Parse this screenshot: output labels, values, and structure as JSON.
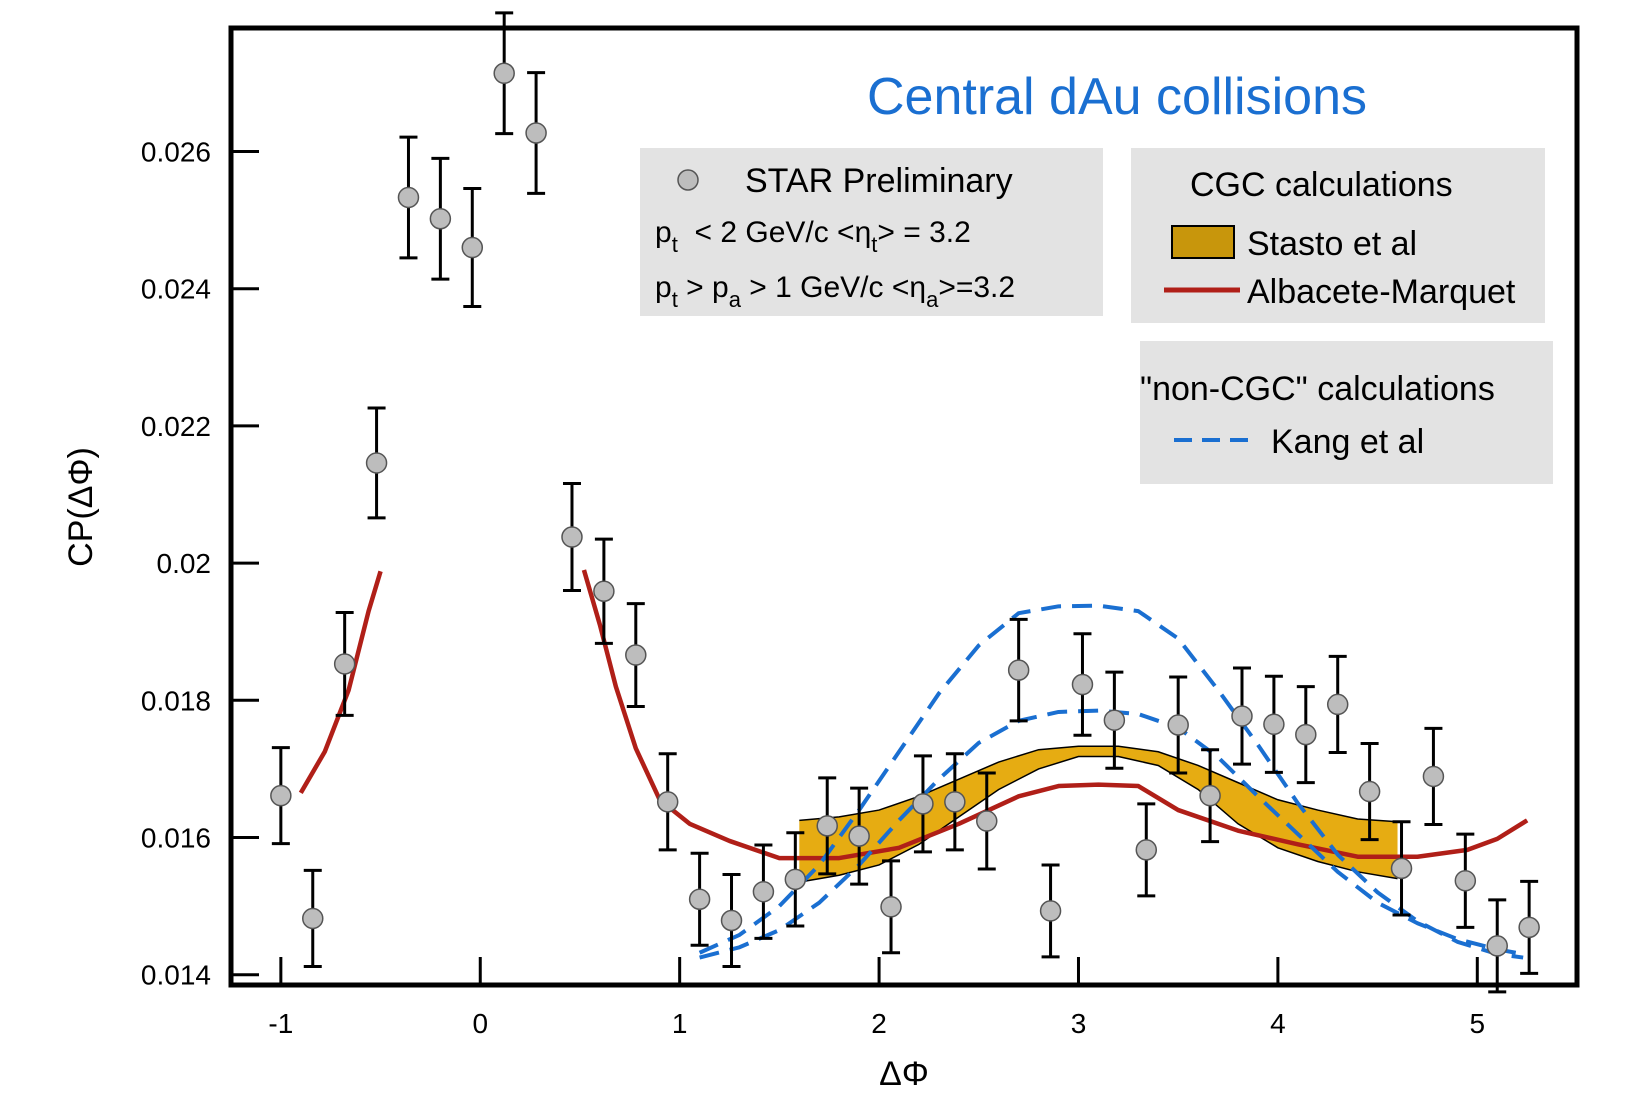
{
  "chart_data": {
    "type": "scatter",
    "title": "Central dAu collisions",
    "xlabel": "ΔΦ",
    "ylabel": "CP(ΔΦ)",
    "xlim": [
      -1.25,
      5.5
    ],
    "ylim": [
      0.01385,
      0.0278
    ],
    "xticks": [
      -1,
      0,
      1,
      2,
      3,
      4,
      5
    ],
    "xtick_labels": [
      "-1",
      "0",
      "1",
      "2",
      "3",
      "4",
      "5"
    ],
    "yticks": [
      0.014,
      0.016,
      0.018,
      0.02,
      0.022,
      0.024,
      0.026
    ],
    "ytick_labels": [
      "0.014",
      "0.016",
      "0.018",
      "0.02",
      "0.022",
      "0.024",
      "0.026"
    ],
    "grid": false,
    "data_legend": {
      "marker_label": "STAR Preliminary",
      "line1": "p_t < 2 GeV/c <η_t> = 3.2",
      "line2": "p_t > p_a > 1 GeV/c <η_a>=3.2"
    },
    "cgc_legend": {
      "title": "CGC calculations",
      "band_label": "Stasto et al",
      "line_label": "Albacete-Marquet"
    },
    "noncgc_legend": {
      "title": "\"non-CGC\" calculations",
      "line_label": "Kang et al"
    },
    "colors": {
      "title": "#1a6fd1",
      "points": "#bdbdbd",
      "albacete": "#b01f18",
      "kang": "#1a6fd1",
      "band": "#e6ac12",
      "legend_bg": "#e3e3e3"
    },
    "series": [
      {
        "name": "STAR Preliminary",
        "type": "scatter",
        "x": [
          -1.0,
          -0.84,
          -0.68,
          -0.52,
          -0.36,
          -0.2,
          -0.04,
          0.12,
          0.28,
          0.46,
          0.62,
          0.78,
          0.94,
          1.1,
          1.26,
          1.42,
          1.58,
          1.74,
          1.9,
          2.06,
          2.22,
          2.38,
          2.54,
          2.7,
          2.86,
          3.02,
          3.18,
          3.34,
          3.5,
          3.66,
          3.82,
          3.98,
          4.14,
          4.3,
          4.46,
          4.62,
          4.78,
          4.94,
          5.1,
          5.26
        ],
        "y": [
          0.01661,
          0.01482,
          0.01853,
          0.02146,
          0.02533,
          0.02502,
          0.0246,
          0.02714,
          0.02627,
          0.02038,
          0.01959,
          0.01866,
          0.01652,
          0.0151,
          0.01479,
          0.01521,
          0.01539,
          0.01617,
          0.01602,
          0.01499,
          0.01649,
          0.01652,
          0.01624,
          0.01844,
          0.01493,
          0.01823,
          0.01771,
          0.01582,
          0.01764,
          0.01661,
          0.01777,
          0.01765,
          0.0175,
          0.01794,
          0.01667,
          0.01555,
          0.01689,
          0.01537,
          0.01442,
          0.01469
        ],
        "err": [
          0.0007,
          0.0007,
          0.00075,
          0.0008,
          0.00088,
          0.00088,
          0.00086,
          0.00088,
          0.00088,
          0.00078,
          0.00076,
          0.00075,
          0.0007,
          0.00067,
          0.00067,
          0.00068,
          0.00068,
          0.0007,
          0.0007,
          0.00067,
          0.0007,
          0.0007,
          0.0007,
          0.00074,
          0.00067,
          0.00074,
          0.0007,
          0.00067,
          0.0007,
          0.00067,
          0.0007,
          0.0007,
          0.0007,
          0.0007,
          0.0007,
          0.00068,
          0.0007,
          0.00068,
          0.00067,
          0.00067
        ]
      },
      {
        "name": "Albacete-Marquet",
        "type": "line",
        "segments": [
          {
            "x": [
              -0.9,
              -0.78,
              -0.66,
              -0.56,
              -0.5
            ],
            "y": [
              0.01665,
              0.01725,
              0.01815,
              0.0193,
              0.01988
            ]
          },
          {
            "x": [
              0.52,
              0.6,
              0.68,
              0.78,
              0.9,
              1.05,
              1.25,
              1.5,
              1.8,
              2.1,
              2.4,
              2.7,
              2.9,
              3.1,
              3.3,
              3.5,
              3.8,
              4.1,
              4.4,
              4.7,
              4.95,
              5.1,
              5.25
            ],
            "y": [
              0.0199,
              0.0191,
              0.0182,
              0.0173,
              0.01655,
              0.0162,
              0.01595,
              0.0157,
              0.0157,
              0.01585,
              0.0162,
              0.0166,
              0.01675,
              0.01677,
              0.01675,
              0.0164,
              0.0161,
              0.0159,
              0.01572,
              0.01572,
              0.01582,
              0.01598,
              0.01625
            ]
          }
        ]
      },
      {
        "name": "Kang et al",
        "type": "dashed-line",
        "segments": [
          {
            "x": [
              1.1,
              1.3,
              1.5,
              1.7,
              1.9,
              2.1,
              2.3,
              2.5,
              2.7,
              2.9,
              3.1,
              3.3,
              3.5,
              3.7,
              3.9,
              4.1,
              4.3,
              4.5,
              4.7,
              4.9,
              5.1,
              5.23
            ],
            "y": [
              0.01432,
              0.01458,
              0.015,
              0.0156,
              0.0164,
              0.01725,
              0.0181,
              0.0188,
              0.01927,
              0.01937,
              0.01938,
              0.0193,
              0.0189,
              0.01815,
              0.01735,
              0.0165,
              0.01575,
              0.0152,
              0.01478,
              0.01448,
              0.0143,
              0.01425
            ]
          },
          {
            "x": [
              1.1,
              1.3,
              1.5,
              1.7,
              1.9,
              2.1,
              2.3,
              2.5,
              2.7,
              2.9,
              3.1,
              3.3,
              3.5,
              3.7,
              3.9,
              4.1,
              4.3,
              4.5,
              4.7,
              4.9,
              5.1,
              5.23
            ],
            "y": [
              0.01425,
              0.0144,
              0.01465,
              0.01505,
              0.0156,
              0.01625,
              0.01685,
              0.01738,
              0.0177,
              0.01783,
              0.01785,
              0.0178,
              0.0176,
              0.01717,
              0.0166,
              0.01605,
              0.0155,
              0.01505,
              0.01475,
              0.01452,
              0.01437,
              0.0143
            ]
          }
        ]
      },
      {
        "name": "Stasto et al",
        "type": "band",
        "x": [
          1.6,
          1.8,
          2.0,
          2.2,
          2.4,
          2.6,
          2.8,
          3.0,
          3.2,
          3.4,
          3.6,
          3.8,
          4.0,
          4.2,
          4.4,
          4.6
        ],
        "upper": [
          0.01625,
          0.0163,
          0.0164,
          0.0166,
          0.01685,
          0.0171,
          0.01728,
          0.01733,
          0.01733,
          0.01725,
          0.01705,
          0.0168,
          0.01655,
          0.0164,
          0.01627,
          0.01623
        ],
        "lower": [
          0.01535,
          0.01545,
          0.0156,
          0.0159,
          0.0163,
          0.0167,
          0.017,
          0.01718,
          0.01718,
          0.01705,
          0.0167,
          0.0162,
          0.01585,
          0.01565,
          0.0155,
          0.0154
        ]
      }
    ]
  }
}
